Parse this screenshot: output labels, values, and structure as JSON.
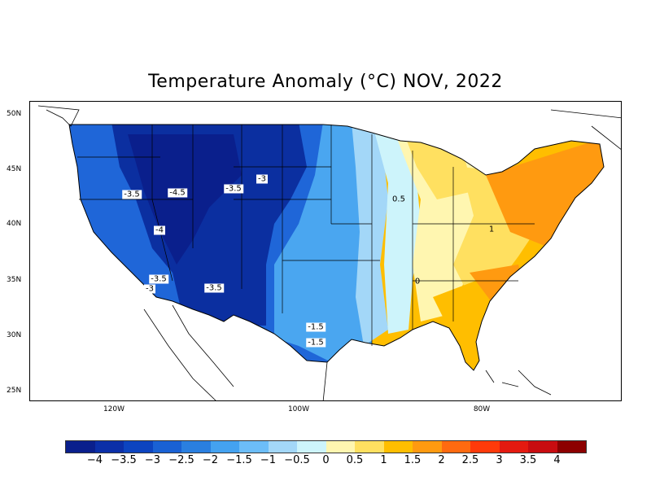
{
  "title": "Temperature Anomaly (°C) NOV, 2022",
  "lat_labels": [
    "50N",
    "45N",
    "40N",
    "35N",
    "30N",
    "25N"
  ],
  "lon_labels": [
    "120W",
    "100W",
    "80W"
  ],
  "contour_labels": [
    "-3.5",
    "-4.5",
    "-3.5",
    "-3",
    "-4",
    "-3.5",
    "-3",
    "-3.5",
    "-1.5",
    "-1.5",
    "0.5",
    "1",
    "0"
  ],
  "colorbar": {
    "colors": [
      "#0a1f8c",
      "#0b2fa8",
      "#0c44c0",
      "#1961d4",
      "#2a7fe0",
      "#44a2f0",
      "#6cbdf8",
      "#a3d7f8",
      "#cdf4fb",
      "#fff6b0",
      "#ffe060",
      "#ffbe00",
      "#ff9a10",
      "#ff6a10",
      "#ff3a0a",
      "#e41a10",
      "#c80c10",
      "#8c0000"
    ],
    "labels": [
      "−4",
      "−3.5",
      "−3",
      "−2.5",
      "−2",
      "−1.5",
      "−1",
      "−0.5",
      "0",
      "0.5",
      "1",
      "1.5",
      "2",
      "2.5",
      "3",
      "3.5",
      "4"
    ]
  },
  "map_regions": {
    "very_cold": "#0b2fa0",
    "cold": "#1f66d8",
    "cool": "#4aa6f0",
    "cool_light": "#a3d7f8",
    "neutral": "#cdf4fb",
    "warm_light": "#fff6b0",
    "warm": "#ffe060",
    "warmer": "#ffbe00",
    "hot": "#ff9a10"
  }
}
